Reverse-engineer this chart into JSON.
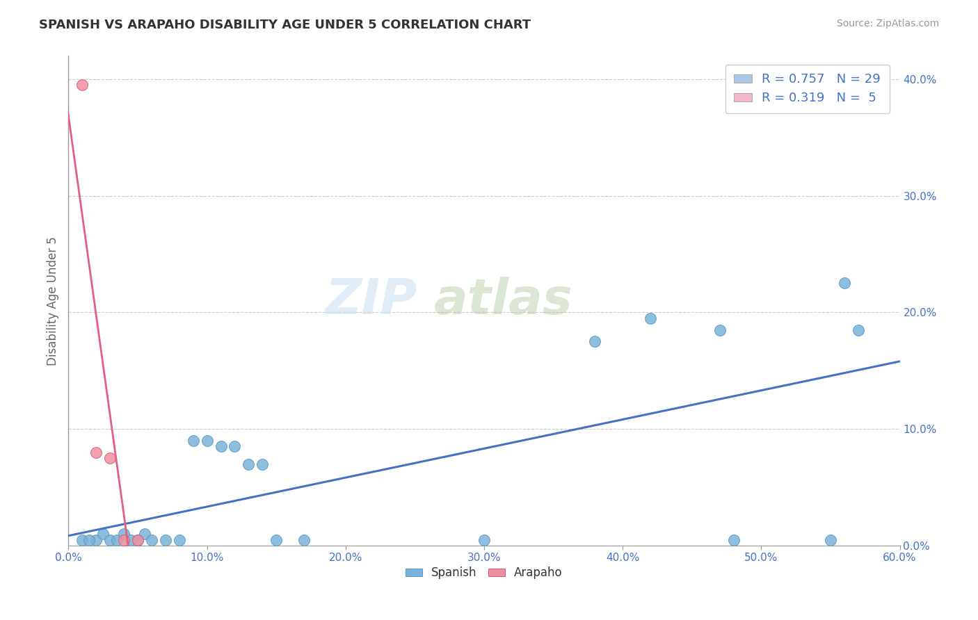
{
  "title": "SPANISH VS ARAPAHO DISABILITY AGE UNDER 5 CORRELATION CHART",
  "source": "Source: ZipAtlas.com",
  "ylabel": "Disability Age Under 5",
  "xlim": [
    0.0,
    0.6
  ],
  "ylim": [
    0.0,
    0.42
  ],
  "xticks": [
    0.0,
    0.1,
    0.2,
    0.3,
    0.4,
    0.5,
    0.6
  ],
  "yticks": [
    0.0,
    0.1,
    0.2,
    0.3,
    0.4
  ],
  "xtick_labels": [
    "0.0%",
    "10.0%",
    "20.0%",
    "30.0%",
    "40.0%",
    "50.0%",
    "60.0%"
  ],
  "ytick_labels": [
    "0.0%",
    "10.0%",
    "20.0%",
    "30.0%",
    "40.0%"
  ],
  "watermark_left": "ZIP",
  "watermark_right": "atlas",
  "spanish_scatter": [
    [
      0.01,
      0.005
    ],
    [
      0.02,
      0.005
    ],
    [
      0.015,
      0.005
    ],
    [
      0.025,
      0.01
    ],
    [
      0.03,
      0.005
    ],
    [
      0.035,
      0.005
    ],
    [
      0.04,
      0.01
    ],
    [
      0.045,
      0.005
    ],
    [
      0.05,
      0.005
    ],
    [
      0.055,
      0.01
    ],
    [
      0.06,
      0.005
    ],
    [
      0.07,
      0.005
    ],
    [
      0.08,
      0.005
    ],
    [
      0.09,
      0.09
    ],
    [
      0.1,
      0.09
    ],
    [
      0.11,
      0.085
    ],
    [
      0.12,
      0.085
    ],
    [
      0.13,
      0.07
    ],
    [
      0.14,
      0.07
    ],
    [
      0.15,
      0.005
    ],
    [
      0.17,
      0.005
    ],
    [
      0.3,
      0.005
    ],
    [
      0.38,
      0.175
    ],
    [
      0.42,
      0.195
    ],
    [
      0.47,
      0.185
    ],
    [
      0.48,
      0.005
    ],
    [
      0.55,
      0.005
    ],
    [
      0.56,
      0.225
    ],
    [
      0.57,
      0.185
    ]
  ],
  "arapaho_scatter": [
    [
      0.01,
      0.395
    ],
    [
      0.02,
      0.08
    ],
    [
      0.03,
      0.075
    ],
    [
      0.04,
      0.005
    ],
    [
      0.05,
      0.005
    ]
  ],
  "title_color": "#333333",
  "spanish_color": "#7ab3d9",
  "arapaho_color": "#f090a0",
  "spanish_edge_color": "#5a9ac8",
  "arapaho_edge_color": "#d06080",
  "spanish_line_color": "#4472c4",
  "arapaho_line_color": "#e06080",
  "grid_color": "#cccccc",
  "background_color": "#ffffff",
  "tick_color": "#4472c4",
  "axis_label_color": "#666666",
  "source_color": "#999999",
  "legend_top_color": "#4472c4",
  "legend_top_items": [
    {
      "facecolor": "#a8c8e8",
      "label": "R = 0.757   N = 29"
    },
    {
      "facecolor": "#f4b8c8",
      "label": "R = 0.319   N =  5"
    }
  ],
  "legend_bottom_items": [
    {
      "facecolor": "#7ab3d9",
      "edgecolor": "#5a9ac8",
      "label": "Spanish"
    },
    {
      "facecolor": "#f090a0",
      "edgecolor": "#d06080",
      "label": "Arapaho"
    }
  ]
}
